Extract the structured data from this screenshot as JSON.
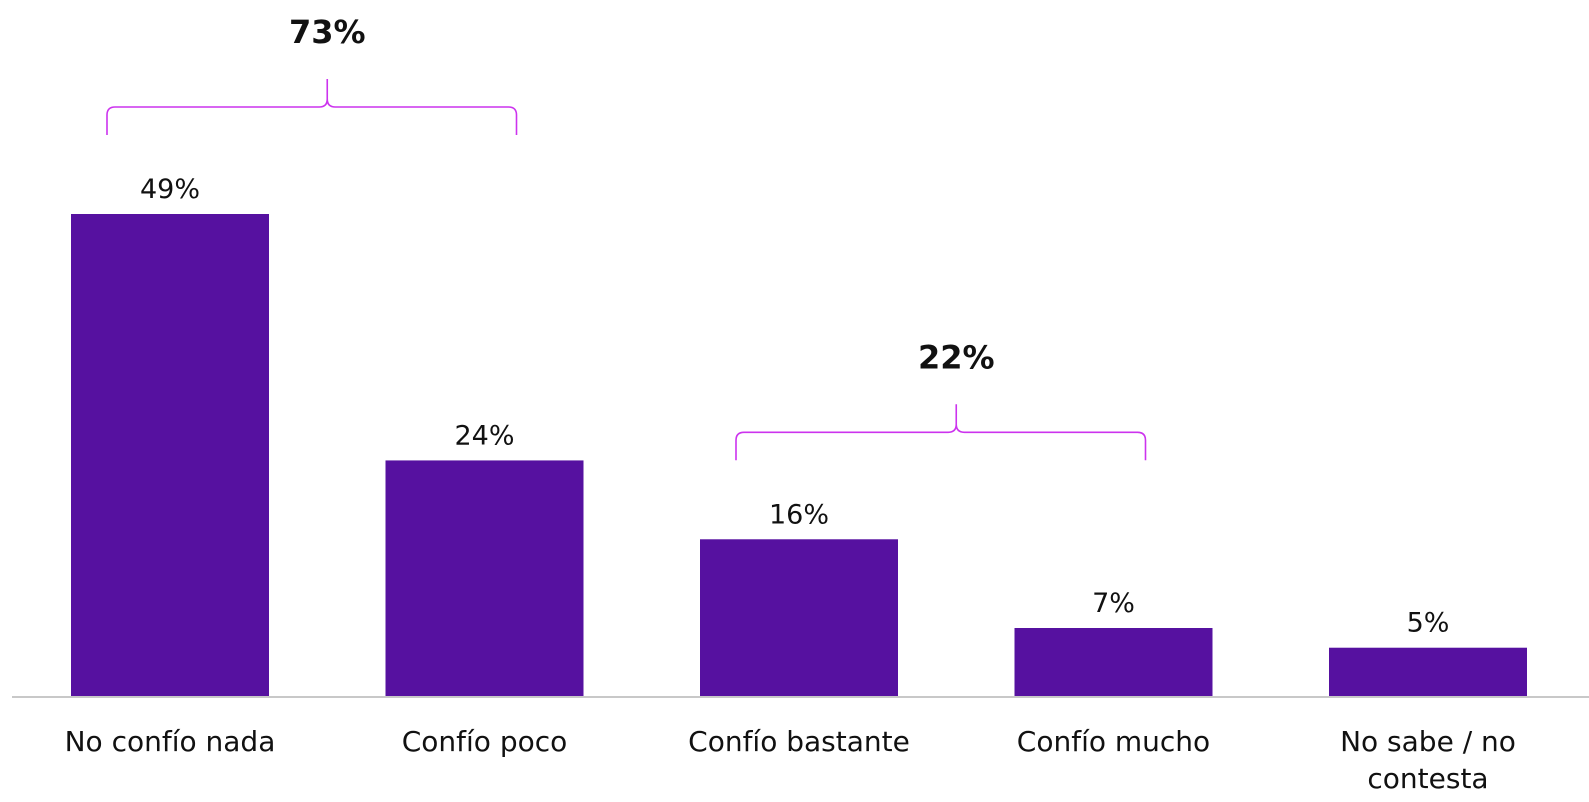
{
  "chart_data": {
    "type": "bar",
    "categories": [
      "No confío nada",
      "Confío poco",
      "Confío bastante",
      "Confío mucho",
      "No sabe / no contesta"
    ],
    "values": [
      49,
      24,
      16,
      7,
      5
    ],
    "value_labels": [
      "49%",
      "24%",
      "16%",
      "7%",
      "5%"
    ],
    "unit": "%",
    "ylim": [
      0,
      49
    ],
    "grid": false,
    "bar_color": "#5611a0",
    "groups": [
      {
        "label": "73%",
        "categories": [
          0,
          1
        ],
        "bracket_color": "#cc33ee"
      },
      {
        "label": "22%",
        "categories": [
          2,
          3
        ],
        "bracket_color": "#cc33ee"
      }
    ]
  }
}
